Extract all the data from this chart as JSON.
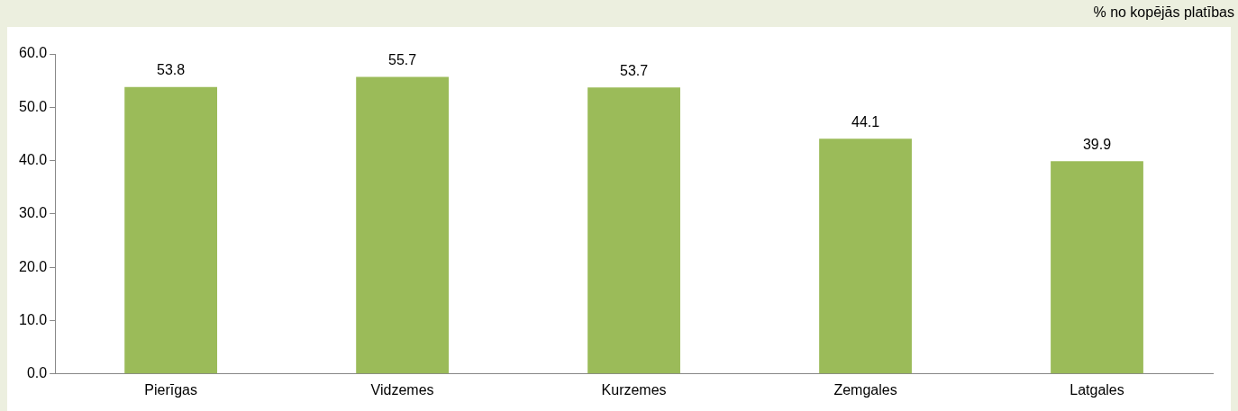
{
  "chart_data": {
    "type": "bar",
    "ylabel": "% no kopējās platības",
    "categories": [
      "Pierīgas",
      "Vidzemes",
      "Kurzemes",
      "Zemgales",
      "Latgales"
    ],
    "values": [
      53.8,
      55.7,
      53.7,
      44.1,
      39.9
    ],
    "color": "#9bbb59",
    "ylim": [
      0,
      60
    ],
    "yticks": [
      {
        "value": 0,
        "label": "0.0"
      },
      {
        "value": 10,
        "label": "10.0"
      },
      {
        "value": 20,
        "label": "20.0"
      },
      {
        "value": 30,
        "label": "30.0"
      },
      {
        "value": 40,
        "label": "40.0"
      },
      {
        "value": 50,
        "label": "50.0"
      },
      {
        "value": 60,
        "label": "60.0"
      }
    ],
    "grid": false,
    "legend": false,
    "data_labels": true
  }
}
